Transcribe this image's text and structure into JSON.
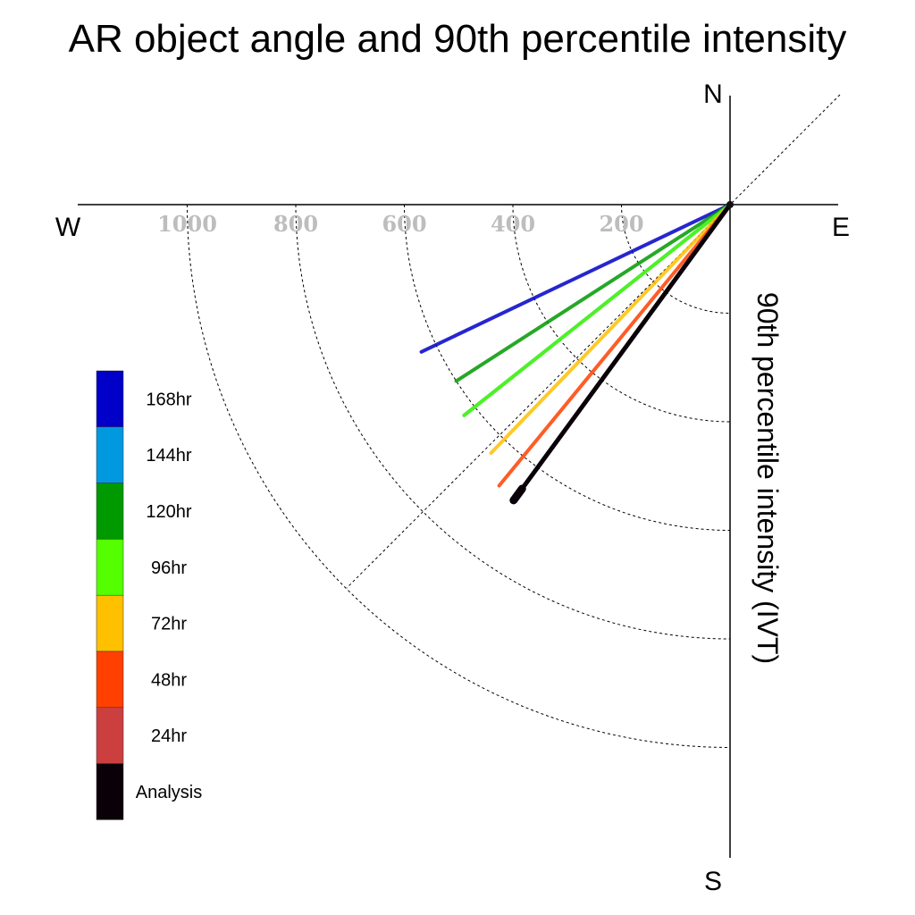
{
  "chart_data": {
    "type": "polar-line",
    "title": "AR object angle and 90th percentile intensity",
    "radial_axis_label": "90th percentile intensity (IVT)",
    "radial_ticks": [
      200,
      400,
      600,
      800,
      1000
    ],
    "radial_max": 1100,
    "grid": "dashed",
    "compass": {
      "north": "N",
      "south": "S",
      "east": "E",
      "west": "W"
    },
    "series": [
      {
        "name": "168hr",
        "color": "#0000C8",
        "angle_deg_from_west": 25.5,
        "value": 630
      },
      {
        "name": "120hr",
        "color": "#009900",
        "angle_deg_from_west": 32.8,
        "value": 600
      },
      {
        "name": "144hr",
        "color": "#0099E0",
        "angle_deg_from_west": 38.4,
        "value": 625
      },
      {
        "name": "96hr",
        "color": "#55FF00",
        "angle_deg_from_west": 38.4,
        "value": 625
      },
      {
        "name": "72hr",
        "color": "#FFC000",
        "angle_deg_from_west": 46.1,
        "value": 635
      },
      {
        "name": "48hr",
        "color": "#FF4000",
        "angle_deg_from_west": 50.6,
        "value": 670
      },
      {
        "name": "24hr",
        "color": "#CC3F3F",
        "angle_deg_from_west": 53.8,
        "value": 650
      },
      {
        "name": "Analysis",
        "color": "#0A0008",
        "angle_deg_from_west": 53.8,
        "value": 675
      }
    ],
    "legend": [
      {
        "label": "168hr",
        "color": "#0000C8"
      },
      {
        "label": "144hr",
        "color": "#0099E0"
      },
      {
        "label": "120hr",
        "color": "#009900"
      },
      {
        "label": "96hr",
        "color": "#55FF00"
      },
      {
        "label": "72hr",
        "color": "#FFC000"
      },
      {
        "label": "48hr",
        "color": "#FF4000"
      },
      {
        "label": "24hr",
        "color": "#CC3F3F"
      },
      {
        "label": "Analysis",
        "color": "#0A0008"
      }
    ],
    "legend_placement": "left"
  }
}
